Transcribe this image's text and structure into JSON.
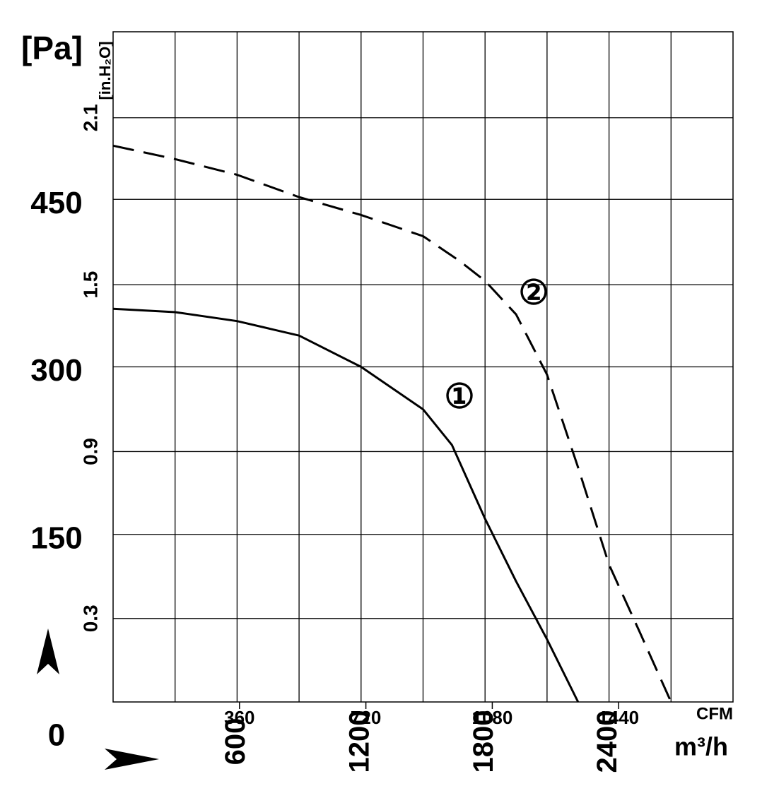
{
  "chart_data": {
    "type": "line",
    "y_label": "[Pa]",
    "y2_label": "[in.H₂O]",
    "x_label": "m³/h",
    "x2_label": "CFM",
    "xlim": [
      0,
      3000
    ],
    "xticks": [
      600,
      1200,
      1800,
      2400
    ],
    "minor_xticks": [
      300,
      900,
      1500,
      2100,
      2700
    ],
    "x2lim": [
      0,
      1765.7
    ],
    "x2ticks": [
      360,
      720,
      1080,
      1440
    ],
    "ylim": [
      0,
      600
    ],
    "yticks": [
      0,
      150,
      300,
      450
    ],
    "y2lim": [
      0,
      2.409
    ],
    "y2ticks": [
      0.3,
      0.9,
      1.5,
      2.1
    ],
    "grid": true,
    "series": [
      {
        "name": "①",
        "color": "#000000",
        "style": "solid",
        "x": [
          0,
          300,
          600,
          900,
          1200,
          1500,
          1640,
          1800,
          1950,
          2100,
          2250
        ],
        "values": [
          352,
          349,
          341,
          328,
          300,
          262,
          230,
          164,
          108,
          56,
          0
        ]
      },
      {
        "name": "②",
        "color": "#000000",
        "style": "dashed",
        "x": [
          0,
          300,
          600,
          900,
          1200,
          1500,
          1675,
          1800,
          1950,
          2100,
          2250,
          2400,
          2550,
          2700
        ],
        "values": [
          498,
          486,
          472,
          452,
          436,
          417,
          395,
          377,
          347,
          293,
          210,
          123,
          62,
          0
        ]
      }
    ]
  }
}
